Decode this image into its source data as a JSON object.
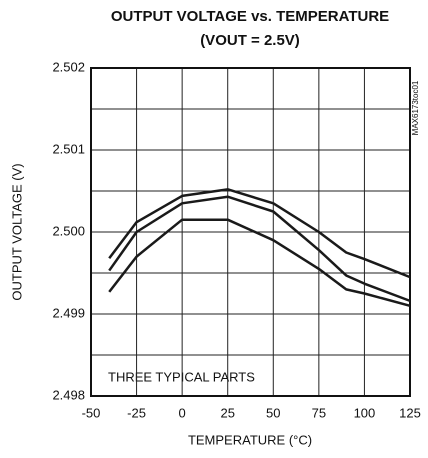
{
  "chart_data": {
    "type": "line",
    "title": "OUTPUT VOLTAGE vs. TEMPERATURE",
    "subtitle": "(VOUT = 2.5V)",
    "x_label": "TEMPERATURE (°C)",
    "y_label": "OUTPUT VOLTAGE (V)",
    "annotations": [
      "THREE TYPICAL PARTS",
      "MAX6173toc01"
    ],
    "x": [
      -40,
      -25,
      0,
      25,
      50,
      75,
      90,
      100,
      125
    ],
    "series": [
      {
        "color": "#1a1a1a",
        "values": [
          2.49968,
          2.50012,
          2.50044,
          2.50052,
          2.50035,
          2.5,
          2.49975,
          2.49967,
          2.49945
        ]
      },
      {
        "color": "#1a1a1a",
        "values": [
          2.49953,
          2.5,
          2.50035,
          2.50043,
          2.50025,
          2.49978,
          2.49947,
          2.49937,
          2.49916
        ]
      },
      {
        "color": "#1a1a1a",
        "values": [
          2.49927,
          2.4997,
          2.50015,
          2.50015,
          2.4999,
          2.49955,
          2.4993,
          2.49925,
          2.4991
        ]
      }
    ],
    "xlim": [
      -50,
      125
    ],
    "xticks": [
      -50,
      -25,
      0,
      25,
      50,
      75,
      100,
      125
    ],
    "ylim": [
      2.498,
      2.502
    ],
    "yticks": [
      2.498,
      2.499,
      {
        "value": 2.5,
        "label": "2.500"
      },
      2.501,
      2.502
    ],
    "y_minor_ticks": [
      2.4985,
      2.4995,
      2.5005,
      2.5015
    ],
    "grid": true
  }
}
